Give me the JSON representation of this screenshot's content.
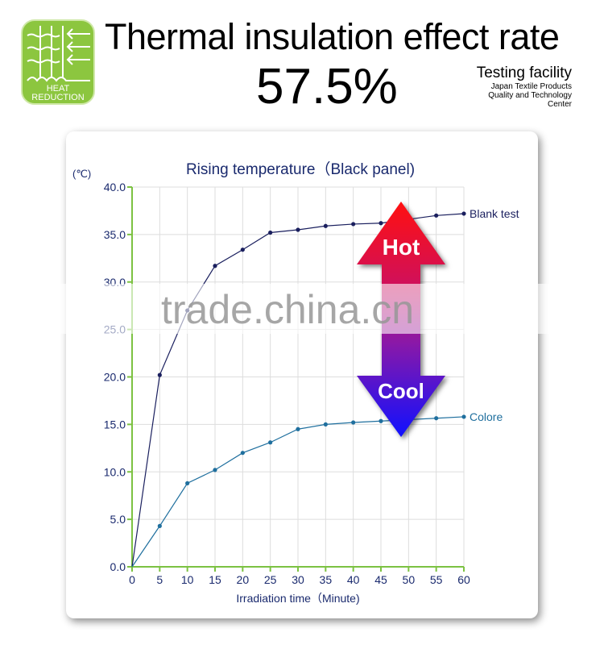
{
  "header": {
    "title": "Thermal insulation effect rate",
    "rate": "57.5%",
    "facility_heading": "Testing facility",
    "facility_lines": [
      "Japan Textile Products",
      "Quality and Technology",
      "Center"
    ]
  },
  "logo": {
    "text": [
      "HEAT",
      "REDUCTION"
    ],
    "color": "#8cc63f"
  },
  "annotations": {
    "hot": "Hot",
    "cool": "Cool"
  },
  "watermark": "trade.china.cn",
  "chart_data": {
    "type": "line",
    "title": "Rising temperature（Black panel)",
    "xlabel": "Irradiation time（Minute)",
    "ylabel": "(℃)",
    "xlim": [
      0,
      60
    ],
    "ylim": [
      0,
      40
    ],
    "x": [
      0,
      5,
      10,
      15,
      20,
      25,
      30,
      35,
      40,
      45,
      50,
      55,
      60
    ],
    "xticks": [
      "0",
      "5",
      "10",
      "15",
      "20",
      "25",
      "30",
      "35",
      "40",
      "45",
      "50",
      "55",
      "60"
    ],
    "yticks": [
      "0.0",
      "5.0",
      "10.0",
      "15.0",
      "20.0",
      "25.0",
      "30.0",
      "35.0",
      "40.0"
    ],
    "grid": true,
    "series": [
      {
        "name": "Blank test",
        "color": "#1a1f5e",
        "values": [
          0,
          20.2,
          27,
          31.7,
          33.4,
          35.2,
          35.5,
          35.9,
          36.1,
          36.2,
          36.6,
          37.0,
          37.2
        ]
      },
      {
        "name": "Colore",
        "color": "#1f6f9e",
        "values": [
          0,
          4.3,
          8.8,
          10.2,
          12.0,
          13.1,
          14.5,
          15.0,
          15.2,
          15.35,
          15.5,
          15.65,
          15.8
        ]
      }
    ]
  }
}
